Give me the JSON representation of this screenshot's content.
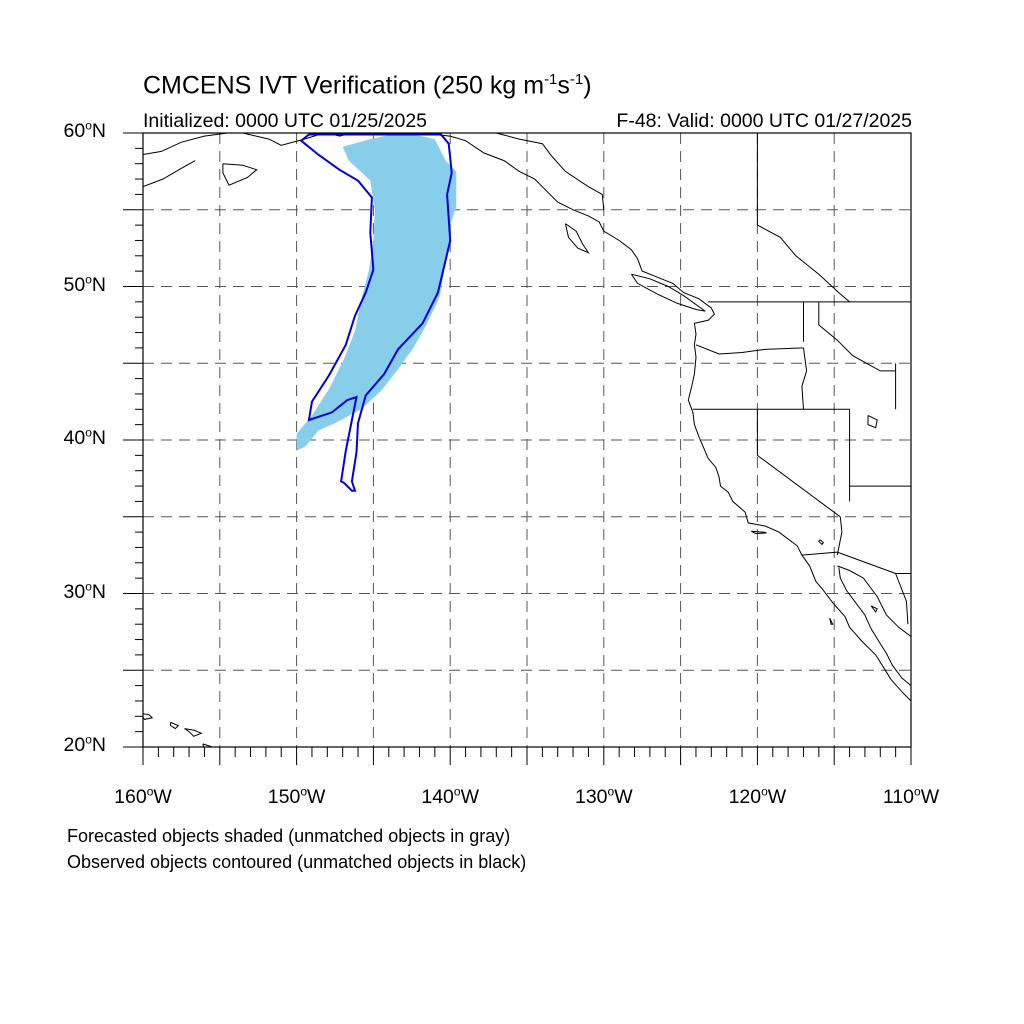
{
  "title": {
    "main": "CMCENS IVT Verification (250 kg m",
    "exp1": "-1",
    "mid": "s",
    "exp2": "-1",
    "close": ")"
  },
  "subtitle": {
    "initialized": "Initialized: 0000 UTC 01/25/2025",
    "valid": "F-48: Valid: 0000 UTC 01/27/2025"
  },
  "axes": {
    "lat_labels": [
      {
        "value": 60,
        "text": "60",
        "suffix": "N"
      },
      {
        "value": 50,
        "text": "50",
        "suffix": "N"
      },
      {
        "value": 40,
        "text": "40",
        "suffix": "N"
      },
      {
        "value": 30,
        "text": "30",
        "suffix": "N"
      },
      {
        "value": 20,
        "text": "20",
        "suffix": "N"
      }
    ],
    "lon_labels": [
      {
        "value": -160,
        "text": "160",
        "suffix": "W"
      },
      {
        "value": -150,
        "text": "150",
        "suffix": "W"
      },
      {
        "value": -140,
        "text": "140",
        "suffix": "W"
      },
      {
        "value": -130,
        "text": "130",
        "suffix": "W"
      },
      {
        "value": -120,
        "text": "120",
        "suffix": "W"
      },
      {
        "value": -110,
        "text": "110",
        "suffix": "W"
      }
    ],
    "lat_range": [
      20,
      60
    ],
    "lon_range": [
      -160,
      -110
    ],
    "grid_interval": 5,
    "grid": "dashed"
  },
  "legend": {
    "forecast": "Forecasted objects shaded (unmatched objects in gray)",
    "observed": "Observed objects contoured (unmatched objects in black)"
  },
  "colors": {
    "forecast_fill": "#87ceeb",
    "observed_contour": "#0000dd",
    "coastline": "#000000",
    "grid": "#555555"
  },
  "objects": {
    "forecast": {
      "status": "matched",
      "polygon_lonlat": [
        [
          -142.4,
          59.9
        ],
        [
          -141.0,
          59.6
        ],
        [
          -140.3,
          58.2
        ],
        [
          -139.6,
          57.5
        ],
        [
          -139.6,
          55.2
        ],
        [
          -140.0,
          54.0
        ],
        [
          -140.0,
          53.0
        ],
        [
          -140.4,
          51.0
        ],
        [
          -140.7,
          49.3
        ],
        [
          -141.6,
          47.4
        ],
        [
          -142.4,
          46.0
        ],
        [
          -143.4,
          44.6
        ],
        [
          -144.5,
          43.2
        ],
        [
          -145.8,
          42.0
        ],
        [
          -147.3,
          41.2
        ],
        [
          -148.6,
          40.6
        ],
        [
          -149.4,
          39.6
        ],
        [
          -150.0,
          39.3
        ],
        [
          -150.0,
          40.4
        ],
        [
          -149.0,
          41.6
        ],
        [
          -147.9,
          43.3
        ],
        [
          -146.9,
          45.3
        ],
        [
          -146.2,
          47.1
        ],
        [
          -145.8,
          49.1
        ],
        [
          -145.3,
          51.0
        ],
        [
          -145.0,
          53.0
        ],
        [
          -144.9,
          55.0
        ],
        [
          -145.2,
          56.9
        ],
        [
          -146.6,
          58.2
        ],
        [
          -147.0,
          59.1
        ],
        [
          -145.2,
          59.6
        ],
        [
          -143.8,
          59.9
        ]
      ]
    },
    "observed": {
      "status": "matched",
      "polygon_lonlat": [
        [
          -149.2,
          59.9
        ],
        [
          -140.6,
          59.9
        ],
        [
          -140.1,
          59.3
        ],
        [
          -139.9,
          57.4
        ],
        [
          -140.2,
          56.0
        ],
        [
          -140.0,
          53.0
        ],
        [
          -140.3,
          51.7
        ],
        [
          -140.8,
          49.6
        ],
        [
          -141.8,
          47.6
        ],
        [
          -143.4,
          45.9
        ],
        [
          -144.3,
          44.3
        ],
        [
          -145.5,
          42.9
        ],
        [
          -146.0,
          41.1
        ],
        [
          -146.1,
          39.2
        ],
        [
          -146.4,
          37.3
        ],
        [
          -146.2,
          36.7
        ],
        [
          -146.4,
          36.7
        ],
        [
          -146.9,
          37.2
        ],
        [
          -147.1,
          37.3
        ],
        [
          -146.8,
          39.3
        ],
        [
          -146.4,
          41.3
        ],
        [
          -146.1,
          42.8
        ],
        [
          -146.7,
          42.6
        ],
        [
          -147.7,
          41.8
        ],
        [
          -149.2,
          41.3
        ],
        [
          -149.0,
          42.5
        ],
        [
          -147.9,
          44.2
        ],
        [
          -146.8,
          46.2
        ],
        [
          -146.2,
          48.1
        ],
        [
          -145.5,
          49.6
        ],
        [
          -145.0,
          51.1
        ],
        [
          -145.2,
          53.5
        ],
        [
          -145.1,
          55.8
        ],
        [
          -146.0,
          56.9
        ],
        [
          -147.2,
          57.6
        ],
        [
          -148.6,
          58.6
        ],
        [
          -149.7,
          59.5
        ]
      ]
    }
  },
  "map": {
    "projection": "cylindrical equidistant",
    "features": [
      "North America west coast",
      "US state boundaries",
      "Canada/US border",
      "Mexico",
      "Hawaiian Islands"
    ]
  }
}
